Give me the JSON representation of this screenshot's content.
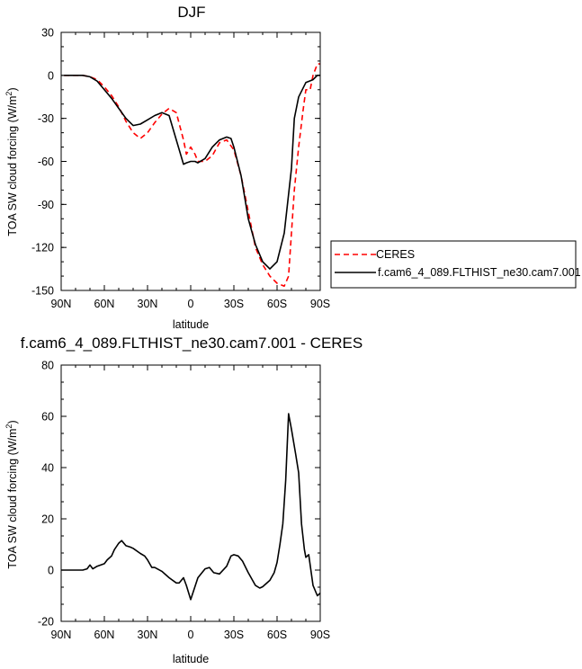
{
  "colors": {
    "ceres": "#ff0000",
    "model": "#000000"
  },
  "chart_data": [
    {
      "type": "line",
      "title": "DJF",
      "xlabel": "latitude",
      "ylabel_main": "TOA SW cloud forcing (W/m",
      "ylabel_sup": "2",
      "ylabel_end": ")",
      "xlim": [
        90,
        -90
      ],
      "ylim": [
        -150,
        30
      ],
      "xticks": [
        90,
        60,
        30,
        0,
        -30,
        -60,
        -90
      ],
      "xtick_labels": [
        "90N",
        "60N",
        "30N",
        "0",
        "30S",
        "60S",
        "90S"
      ],
      "yticks": [
        30,
        0,
        -30,
        -60,
        -90,
        -120,
        -150
      ],
      "ytick_labels": [
        "30",
        "0",
        "-30",
        "-60",
        "-90",
        "-120",
        "-150"
      ],
      "legend_position": "right",
      "series": [
        {
          "name": "CERES",
          "style": "dashed",
          "color": "#ff0000",
          "x": [
            88,
            80,
            75,
            70,
            65,
            60,
            55,
            50,
            45,
            40,
            35,
            30,
            25,
            20,
            15,
            10,
            5,
            3,
            0,
            -3,
            -5,
            -10,
            -15,
            -20,
            -25,
            -30,
            -35,
            -40,
            -45,
            -50,
            -55,
            -60,
            -65,
            -68,
            -70,
            -72,
            -75,
            -78,
            -80,
            -83,
            -85,
            -88,
            -90
          ],
          "y": [
            0,
            0,
            0,
            -1,
            -3,
            -8,
            -14,
            -22,
            -32,
            -40,
            -44,
            -40,
            -33,
            -27,
            -23,
            -26,
            -45,
            -55,
            -50,
            -55,
            -60,
            -60,
            -56,
            -47,
            -45,
            -52,
            -70,
            -95,
            -120,
            -132,
            -140,
            -145,
            -147,
            -140,
            -110,
            -80,
            -50,
            -25,
            -10,
            -10,
            0,
            8,
            8
          ]
        },
        {
          "name": "f.cam6_4_089.FLTHIST_ne30.cam7.001",
          "style": "solid",
          "color": "#000000",
          "x": [
            88,
            80,
            75,
            70,
            65,
            60,
            55,
            50,
            45,
            40,
            35,
            30,
            25,
            20,
            15,
            10,
            5,
            3,
            0,
            -3,
            -5,
            -10,
            -15,
            -20,
            -25,
            -28,
            -30,
            -35,
            -40,
            -45,
            -50,
            -55,
            -60,
            -65,
            -70,
            -72,
            -75,
            -80,
            -85,
            -88,
            -90
          ],
          "y": [
            0,
            0,
            0,
            -1,
            -4,
            -10,
            -16,
            -23,
            -30,
            -35,
            -34,
            -31,
            -28,
            -26,
            -28,
            -45,
            -62,
            -61,
            -60,
            -60,
            -61,
            -58,
            -50,
            -45,
            -43,
            -44,
            -50,
            -70,
            -100,
            -118,
            -130,
            -135,
            -130,
            -110,
            -65,
            -30,
            -15,
            -5,
            -3,
            0,
            0
          ]
        }
      ]
    },
    {
      "type": "line",
      "title": "f.cam6_4_089.FLTHIST_ne30.cam7.001 - CERES",
      "xlabel": "latitude",
      "ylabel_main": "TOA SW cloud forcing (W/m",
      "ylabel_sup": "2",
      "ylabel_end": ")",
      "xlim": [
        90,
        -90
      ],
      "ylim": [
        -20,
        80
      ],
      "xticks": [
        90,
        60,
        30,
        0,
        -30,
        -60,
        -90
      ],
      "xtick_labels": [
        "90N",
        "60N",
        "30N",
        "0",
        "30S",
        "60S",
        "90S"
      ],
      "yticks": [
        80,
        60,
        40,
        20,
        0,
        -20
      ],
      "ytick_labels": [
        "80",
        "60",
        "40",
        "20",
        "0",
        "-20"
      ],
      "series": [
        {
          "style": "solid",
          "color": "#000000",
          "x": [
            90,
            75,
            72,
            70,
            68,
            65,
            60,
            58,
            55,
            53,
            50,
            48,
            45,
            42,
            40,
            35,
            32,
            30,
            27,
            25,
            20,
            15,
            10,
            8,
            5,
            3,
            0,
            -5,
            -10,
            -13,
            -16,
            -20,
            -25,
            -28,
            -30,
            -33,
            -36,
            -40,
            -45,
            -48,
            -50,
            -55,
            -58,
            -60,
            -62,
            -64,
            -66,
            -68,
            -70,
            -73,
            -75,
            -77,
            -79,
            -80,
            -82,
            -85,
            -88,
            -90
          ],
          "y": [
            0,
            0,
            0.5,
            2,
            0.5,
            1.5,
            2.5,
            4,
            5.5,
            8,
            10.5,
            11.5,
            9.5,
            9,
            8.5,
            6.5,
            5.5,
            4,
            1,
            1,
            -0.5,
            -3,
            -5,
            -5,
            -3,
            -6,
            -11.5,
            -3,
            0.5,
            1,
            -1,
            -1.5,
            1.5,
            5.5,
            6,
            5.5,
            3.5,
            -1,
            -6,
            -7,
            -6.5,
            -4,
            -1,
            3,
            10,
            18,
            35,
            61,
            55,
            45,
            38,
            18,
            8,
            5,
            6,
            -6,
            -10,
            -9
          ]
        }
      ]
    }
  ]
}
